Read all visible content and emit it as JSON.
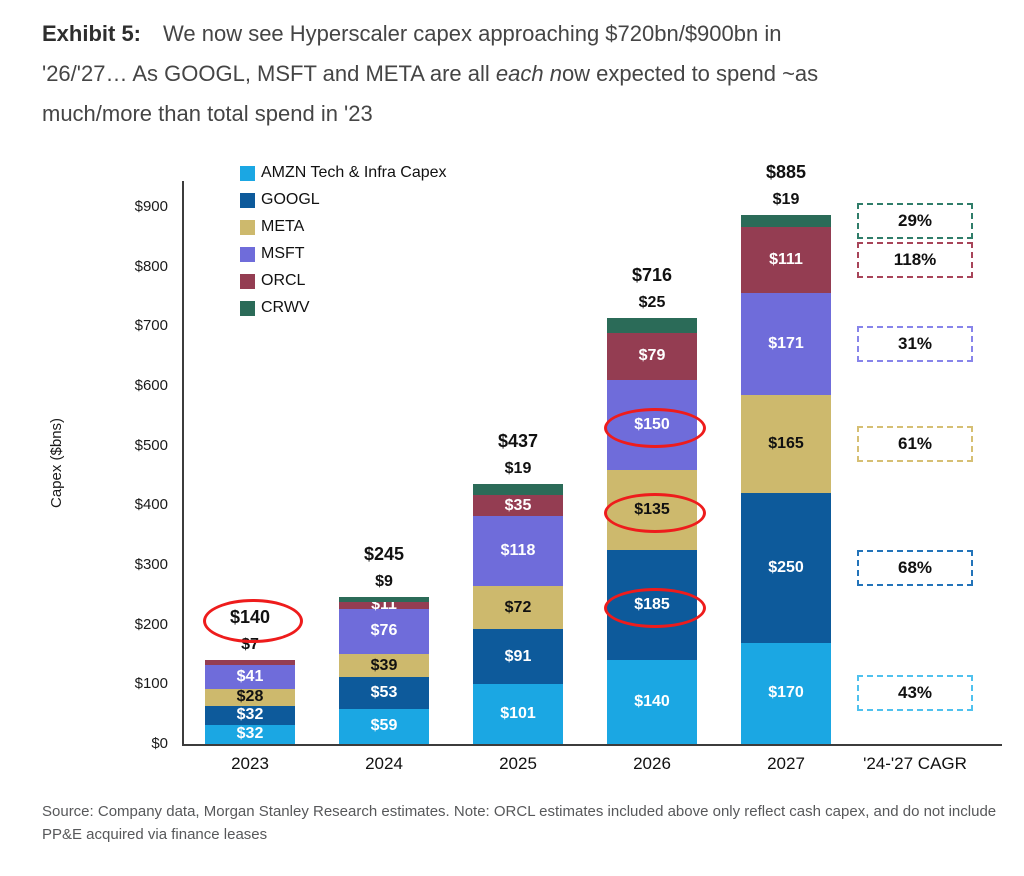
{
  "title": {
    "lines": [
      {
        "parts": [
          {
            "text": "Exhibit 5:",
            "bold": true
          },
          {
            "text": "We now see Hyperscaler capex approaching $720bn/$900bn in"
          }
        ]
      },
      {
        "parts": [
          {
            "text": "'26/'27… As GOOGL, MSFT and META are all "
          },
          {
            "text": "each n",
            "italic": true
          },
          {
            "text": "ow expected to spend ~as"
          }
        ]
      },
      {
        "parts": [
          {
            "text": "much/more than total spend in '23"
          }
        ]
      }
    ]
  },
  "chart_data": {
    "type": "bar",
    "stacked": true,
    "grid": false,
    "legend_position": "top-left-inside",
    "ylabel": "Capex ($bns)",
    "ylim": [
      0,
      950
    ],
    "yticks": [
      {
        "value": 0,
        "label": "$0"
      },
      {
        "value": 100,
        "label": "$100"
      },
      {
        "value": 200,
        "label": "$200"
      },
      {
        "value": 300,
        "label": "$300"
      },
      {
        "value": 400,
        "label": "$400"
      },
      {
        "value": 500,
        "label": "$500"
      },
      {
        "value": 600,
        "label": "$600"
      },
      {
        "value": 700,
        "label": "$700"
      },
      {
        "value": 800,
        "label": "$800"
      },
      {
        "value": 900,
        "label": "$900"
      }
    ],
    "categories": [
      "2023",
      "2024",
      "2025",
      "2026",
      "2027"
    ],
    "series": [
      {
        "key": "amzn",
        "name": "AMZN Tech & Infra Capex",
        "color": "#1BA7E3",
        "label_color": "#ffffff",
        "values": [
          32,
          59,
          101,
          140,
          170
        ]
      },
      {
        "key": "googl",
        "name": "GOOGL",
        "color": "#0D5A9B",
        "label_color": "#ffffff",
        "values": [
          32,
          53,
          91,
          185,
          250
        ]
      },
      {
        "key": "meta",
        "name": "META",
        "color": "#CDB96D",
        "label_color": "#111111",
        "values": [
          28,
          39,
          72,
          135,
          165
        ]
      },
      {
        "key": "msft",
        "name": "MSFT",
        "color": "#6F6CDA",
        "label_color": "#ffffff",
        "values": [
          41,
          76,
          118,
          150,
          171
        ]
      },
      {
        "key": "orcl",
        "name": "ORCL",
        "color": "#943D52",
        "label_color": "#ffffff",
        "values": [
          7,
          11,
          35,
          79,
          111
        ]
      },
      {
        "key": "crwv",
        "name": "CRWV",
        "color": "#2B6B58",
        "label_color": "#111111",
        "values": [
          null,
          9,
          19,
          25,
          19
        ]
      }
    ],
    "value_prefix": "$",
    "totals": [
      "$140",
      "$245",
      "$437",
      "$716",
      "$885"
    ],
    "outside_value_labels": [
      [
        0,
        "orcl"
      ],
      [
        1,
        "crwv"
      ],
      [
        2,
        "crwv"
      ],
      [
        3,
        "crwv"
      ],
      [
        4,
        "crwv"
      ]
    ],
    "circled_labels": [
      [
        0,
        "total"
      ],
      [
        3,
        "googl"
      ],
      [
        3,
        "meta"
      ],
      [
        3,
        "msft"
      ]
    ],
    "annotation_color": "#EE1C1C",
    "cagr": {
      "label": "'24-'27 CAGR",
      "entries": [
        {
          "series": "crwv",
          "value": "29%",
          "color": "#2F7D69"
        },
        {
          "series": "orcl",
          "value": "118%",
          "color": "#A84459"
        },
        {
          "series": "msft",
          "value": "31%",
          "color": "#8784EA"
        },
        {
          "series": "meta",
          "value": "61%",
          "color": "#D6BF73"
        },
        {
          "series": "googl",
          "value": "68%",
          "color": "#2273B9"
        },
        {
          "series": "amzn",
          "value": "43%",
          "color": "#4FC1EE"
        }
      ]
    }
  },
  "source": "Source: Company data, Morgan Stanley Research estimates. Note: ORCL estimates included above only reflect cash capex, and do not include PP&E acquired via finance leases"
}
